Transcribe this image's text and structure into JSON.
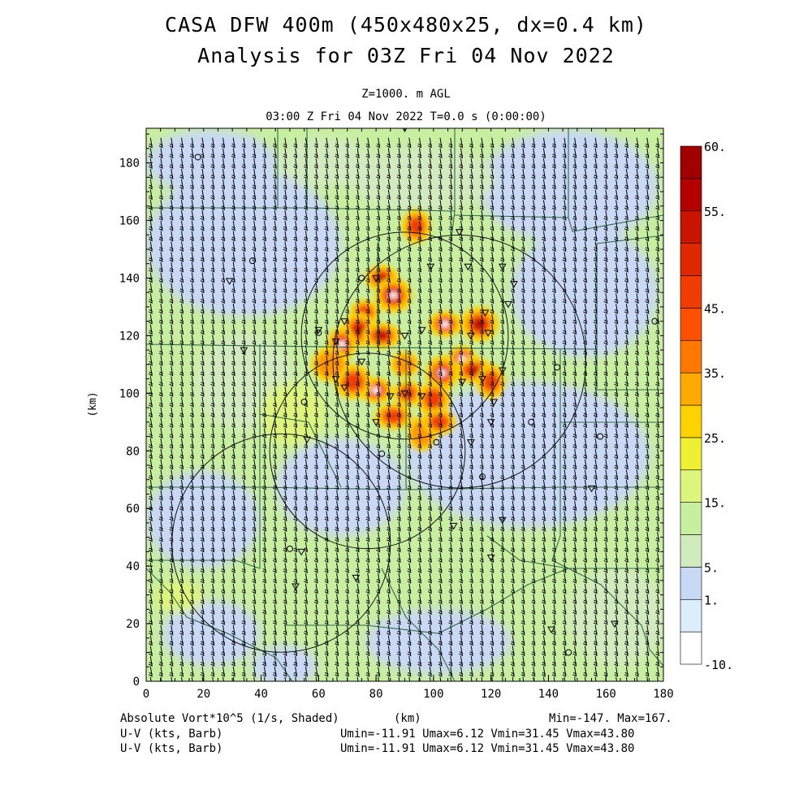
{
  "header": {
    "title_line1": "CASA DFW 400m (450x480x25, dx=0.4 km)",
    "title_line2": "Analysis for 03Z Fri 04 Nov 2022",
    "level": "Z=1000. m AGL",
    "time": "03:00 Z Fri 04 Nov 2022    T=0.0 s (0:00:00)"
  },
  "footer": {
    "field_label": "Absolute Vort*10^5 (1/s, Shaded)",
    "unit_label": "(km)",
    "minmax": "Min=-147. Max=167.",
    "vector1_label": "U-V (kts, Barb)",
    "vector1_stats": "Umin=-11.91 Umax=6.12 Vmin=31.45 Vmax=43.80",
    "vector2_label": "U-V (kts, Barb)",
    "vector2_stats": "Umin=-11.91 Umax=6.12 Vmin=31.45 Vmax=43.80"
  },
  "colors": {
    "background": "#ffffff",
    "county_lines": "#2e6b4a",
    "range_rings": "#000000",
    "barbs": "#000000"
  },
  "chart_data": {
    "type": "heatmap",
    "field": "Absolute Vort*10^5 (1/s, Shaded)",
    "xlabel": "",
    "ylabel": "(km)",
    "xlim": [
      0,
      180
    ],
    "ylim": [
      0,
      192
    ],
    "x_ticks": [
      "0",
      "20",
      "40",
      "60",
      "80",
      "100",
      "120",
      "140",
      "160",
      "180"
    ],
    "y_ticks": [
      "0",
      "20",
      "40",
      "60",
      "80",
      "100",
      "120",
      "140",
      "160",
      "180"
    ],
    "min": -147,
    "max": 167,
    "colorbar": {
      "labels": [
        "60.",
        "55.",
        "45.",
        "35.",
        "25.",
        "15.",
        "5.",
        "1.",
        "-10."
      ],
      "colors": [
        "#ffffff",
        "#dceefa",
        "#c8d8f5",
        "#d2ebbe",
        "#c8eea0",
        "#dcf57a",
        "#f0f032",
        "#ffd200",
        "#ffaa00",
        "#ff7800",
        "#ff5000",
        "#f03c00",
        "#e02800",
        "#c81400",
        "#b40000",
        "#a00000"
      ]
    },
    "radars": [
      {
        "x": 90,
        "y": 120,
        "r": 36
      },
      {
        "x": 109,
        "y": 111,
        "r": 44
      },
      {
        "x": 77,
        "y": 80,
        "r": 34
      },
      {
        "x": 47,
        "y": 48,
        "r": 38
      }
    ],
    "vorticity_cells": [
      {
        "x": 94,
        "y": 158,
        "v": 40
      },
      {
        "x": 82,
        "y": 140,
        "v": 45
      },
      {
        "x": 86,
        "y": 134,
        "v": 55
      },
      {
        "x": 76,
        "y": 128,
        "v": 35
      },
      {
        "x": 74,
        "y": 122,
        "v": 45
      },
      {
        "x": 82,
        "y": 120,
        "v": 50
      },
      {
        "x": 68,
        "y": 117,
        "v": 60
      },
      {
        "x": 104,
        "y": 124,
        "v": 60
      },
      {
        "x": 116,
        "y": 124,
        "v": 45
      },
      {
        "x": 110,
        "y": 112,
        "v": 60
      },
      {
        "x": 103,
        "y": 107,
        "v": 60
      },
      {
        "x": 114,
        "y": 108,
        "v": 45
      },
      {
        "x": 120,
        "y": 104,
        "v": 35
      },
      {
        "x": 80,
        "y": 101,
        "v": 60
      },
      {
        "x": 72,
        "y": 104,
        "v": 40
      },
      {
        "x": 91,
        "y": 100,
        "v": 40
      },
      {
        "x": 100,
        "y": 98,
        "v": 35
      },
      {
        "x": 86,
        "y": 92,
        "v": 35
      },
      {
        "x": 96,
        "y": 86,
        "v": 30
      },
      {
        "x": 102,
        "y": 90,
        "v": 40
      },
      {
        "x": 64,
        "y": 110,
        "v": 25
      },
      {
        "x": 90,
        "y": 110,
        "v": 30
      }
    ],
    "stations_triangle": [
      [
        90,
        192
      ],
      [
        109,
        156
      ],
      [
        112,
        144
      ],
      [
        99,
        144
      ],
      [
        124,
        144
      ],
      [
        128,
        138
      ],
      [
        80,
        140
      ],
      [
        126,
        131
      ],
      [
        60,
        122
      ],
      [
        69,
        125
      ],
      [
        96,
        122
      ],
      [
        90,
        120
      ],
      [
        113,
        120
      ],
      [
        119,
        121
      ],
      [
        34,
        115
      ],
      [
        66,
        118
      ],
      [
        75,
        111
      ],
      [
        66,
        105
      ],
      [
        117,
        105
      ],
      [
        124,
        108
      ],
      [
        69,
        102
      ],
      [
        85,
        99
      ],
      [
        90,
        100
      ],
      [
        96,
        99
      ],
      [
        110,
        104
      ],
      [
        121,
        97
      ],
      [
        120,
        90
      ],
      [
        80,
        90
      ],
      [
        56,
        84
      ],
      [
        29,
        139
      ],
      [
        113,
        83
      ],
      [
        124,
        56
      ],
      [
        107,
        54
      ],
      [
        120,
        43
      ],
      [
        73,
        36
      ],
      [
        155,
        67
      ],
      [
        141,
        18
      ],
      [
        163,
        20
      ],
      [
        52,
        33
      ],
      [
        54,
        45
      ],
      [
        118,
        128
      ]
    ],
    "stations_circle": [
      [
        18,
        182
      ],
      [
        37,
        146
      ],
      [
        60,
        121
      ],
      [
        75,
        140
      ],
      [
        55,
        97
      ],
      [
        134,
        90
      ],
      [
        158,
        85
      ],
      [
        82,
        79
      ],
      [
        101,
        83
      ],
      [
        50,
        46
      ],
      [
        177,
        125
      ],
      [
        147,
        10
      ],
      [
        117,
        71
      ],
      [
        143,
        109
      ]
    ],
    "wind": {
      "u_kts": -6,
      "v_kts": 38
    }
  }
}
